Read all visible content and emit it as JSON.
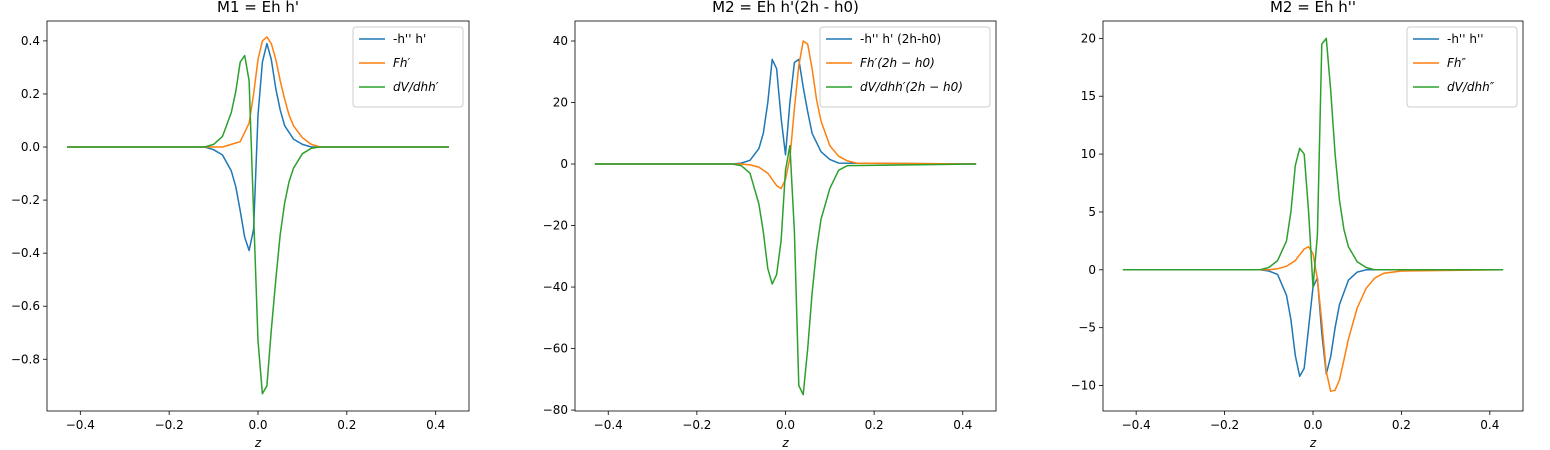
{
  "chart_data": [
    {
      "type": "line",
      "title": "M1 = Eh h'",
      "xlabel": "z",
      "ylabel": "",
      "xlim": [
        -0.475,
        0.475
      ],
      "ylim": [
        -0.995,
        0.475
      ],
      "xticks": [
        -0.4,
        -0.2,
        0.0,
        0.2,
        0.4
      ],
      "xtick_labels": [
        "−0.4",
        "−0.2",
        "0.0",
        "0.2",
        "0.4"
      ],
      "yticks": [
        -0.8,
        -0.6,
        -0.4,
        -0.2,
        0.0,
        0.2,
        0.4
      ],
      "ytick_labels": [
        "−0.8",
        "−0.6",
        "−0.4",
        "−0.2",
        "0.0",
        "0.2",
        "0.4"
      ],
      "legend_position": "top-right",
      "series": [
        {
          "name": "-h'' h'",
          "color": "#1f77b4",
          "x": [
            -0.43,
            -0.12,
            -0.1,
            -0.08,
            -0.06,
            -0.05,
            -0.04,
            -0.03,
            -0.02,
            -0.01,
            0.0,
            0.01,
            0.02,
            0.03,
            0.04,
            0.05,
            0.06,
            0.08,
            0.1,
            0.12,
            0.43
          ],
          "y": [
            0,
            0,
            -0.01,
            -0.03,
            -0.09,
            -0.15,
            -0.24,
            -0.34,
            -0.39,
            -0.31,
            0.12,
            0.32,
            0.39,
            0.33,
            0.22,
            0.14,
            0.08,
            0.03,
            0.01,
            0,
            0
          ]
        },
        {
          "name": "Fh′",
          "color": "#ff7f0e",
          "x": [
            -0.43,
            -0.1,
            -0.08,
            -0.06,
            -0.04,
            -0.02,
            -0.01,
            0.0,
            0.01,
            0.02,
            0.03,
            0.04,
            0.05,
            0.06,
            0.07,
            0.08,
            0.1,
            0.12,
            0.14,
            0.43
          ],
          "y": [
            0,
            0,
            0,
            0.01,
            0.02,
            0.09,
            0.2,
            0.33,
            0.4,
            0.415,
            0.39,
            0.33,
            0.25,
            0.18,
            0.12,
            0.08,
            0.035,
            0.01,
            0,
            0
          ]
        },
        {
          "name": "dV/dhh′",
          "color": "#2ca02c",
          "x": [
            -0.43,
            -0.12,
            -0.1,
            -0.08,
            -0.06,
            -0.05,
            -0.04,
            -0.03,
            -0.02,
            -0.01,
            0.0,
            0.01,
            0.02,
            0.03,
            0.04,
            0.05,
            0.06,
            0.07,
            0.08,
            0.1,
            0.12,
            0.14,
            0.43
          ],
          "y": [
            0,
            0,
            0.01,
            0.04,
            0.13,
            0.21,
            0.32,
            0.345,
            0.25,
            -0.25,
            -0.73,
            -0.93,
            -0.9,
            -0.69,
            -0.5,
            -0.33,
            -0.21,
            -0.13,
            -0.08,
            -0.025,
            -0.005,
            0,
            0
          ]
        }
      ]
    },
    {
      "type": "line",
      "title": "M2 = Eh h'(2h - h0)",
      "xlabel": "z",
      "ylabel": "",
      "xlim": [
        -0.475,
        0.475
      ],
      "ylim": [
        -80.3,
        46.5
      ],
      "xticks": [
        -0.4,
        -0.2,
        0.0,
        0.2,
        0.4
      ],
      "xtick_labels": [
        "−0.4",
        "−0.2",
        "0.0",
        "0.2",
        "0.4"
      ],
      "yticks": [
        -80,
        -60,
        -40,
        -20,
        0,
        20,
        40
      ],
      "ytick_labels": [
        "−80",
        "−60",
        "−40",
        "−20",
        "0",
        "20",
        "40"
      ],
      "legend_position": "top-right",
      "series": [
        {
          "name": "-h'' h' (2h-h0)",
          "color": "#1f77b4",
          "x": [
            -0.43,
            -0.12,
            -0.1,
            -0.08,
            -0.06,
            -0.05,
            -0.04,
            -0.03,
            -0.02,
            -0.01,
            0.0,
            0.01,
            0.02,
            0.03,
            0.04,
            0.05,
            0.06,
            0.08,
            0.1,
            0.12,
            0.43
          ],
          "y": [
            0,
            0,
            0.3,
            1.2,
            5,
            10,
            20,
            34,
            31,
            15,
            3,
            20,
            33,
            34,
            25,
            17,
            10,
            4,
            1.5,
            0.3,
            0
          ]
        },
        {
          "name": "Fh′(2h − h0)",
          "color": "#ff7f0e",
          "x": [
            -0.43,
            -0.1,
            -0.08,
            -0.06,
            -0.04,
            -0.02,
            -0.01,
            0.0,
            0.01,
            0.02,
            0.03,
            0.04,
            0.05,
            0.06,
            0.07,
            0.08,
            0.1,
            0.12,
            0.14,
            0.16,
            0.43
          ],
          "y": [
            0,
            0,
            -0.3,
            -1,
            -3,
            -7,
            -8,
            -5,
            2,
            18,
            32,
            40,
            39,
            31,
            21,
            14,
            6,
            2.5,
            1,
            0.3,
            0
          ]
        },
        {
          "name": "dV/dhh′(2h − h0)",
          "color": "#2ca02c",
          "x": [
            -0.43,
            -0.12,
            -0.1,
            -0.08,
            -0.06,
            -0.05,
            -0.04,
            -0.03,
            -0.02,
            -0.01,
            0.0,
            0.01,
            0.02,
            0.03,
            0.04,
            0.05,
            0.06,
            0.07,
            0.08,
            0.1,
            0.12,
            0.14,
            0.43
          ],
          "y": [
            0,
            0,
            -0.5,
            -3,
            -13,
            -22,
            -34,
            -39,
            -36,
            -25,
            -2,
            6,
            -22,
            -72,
            -75,
            -60,
            -42,
            -28,
            -18,
            -8,
            -2,
            -0.5,
            0
          ]
        }
      ]
    },
    {
      "type": "line",
      "title": "M2 = Eh h''",
      "xlabel": "z",
      "ylabel": "",
      "xlim": [
        -0.475,
        0.475
      ],
      "ylim": [
        -12.2,
        21.5
      ],
      "xticks": [
        -0.4,
        -0.2,
        0.0,
        0.2,
        0.4
      ],
      "xtick_labels": [
        "−0.4",
        "−0.2",
        "0.0",
        "0.2",
        "0.4"
      ],
      "yticks": [
        -10,
        -5,
        0,
        5,
        10,
        15,
        20
      ],
      "ytick_labels": [
        "−10",
        "−5",
        "0",
        "5",
        "10",
        "15",
        "20"
      ],
      "legend_position": "top-right",
      "series": [
        {
          "name": "-h'' h''",
          "color": "#1f77b4",
          "x": [
            -0.43,
            -0.12,
            -0.1,
            -0.08,
            -0.06,
            -0.05,
            -0.04,
            -0.03,
            -0.02,
            -0.01,
            0.0,
            0.01,
            0.02,
            0.03,
            0.04,
            0.05,
            0.06,
            0.08,
            0.1,
            0.12,
            0.43
          ],
          "y": [
            0,
            0,
            -0.1,
            -0.4,
            -2.2,
            -4.3,
            -7.4,
            -9.2,
            -8.5,
            -5,
            -1.5,
            -0.7,
            -5.5,
            -9,
            -7.5,
            -5,
            -3,
            -0.9,
            -0.2,
            0,
            0
          ]
        },
        {
          "name": "Fh″",
          "color": "#ff7f0e",
          "x": [
            -0.43,
            -0.1,
            -0.08,
            -0.06,
            -0.04,
            -0.03,
            -0.02,
            -0.01,
            0.0,
            0.01,
            0.02,
            0.03,
            0.04,
            0.05,
            0.06,
            0.07,
            0.08,
            0.1,
            0.12,
            0.14,
            0.16,
            0.2,
            0.43
          ],
          "y": [
            0,
            0,
            0.1,
            0.3,
            0.8,
            1.3,
            1.8,
            2.0,
            1.4,
            -0.8,
            -4.5,
            -8.8,
            -10.5,
            -10.4,
            -9.5,
            -7.8,
            -6,
            -3.3,
            -1.6,
            -0.7,
            -0.3,
            -0.1,
            0
          ]
        },
        {
          "name": "dV/dhh″",
          "color": "#2ca02c",
          "x": [
            -0.43,
            -0.12,
            -0.1,
            -0.08,
            -0.06,
            -0.05,
            -0.04,
            -0.03,
            -0.02,
            -0.01,
            0.0,
            0.01,
            0.02,
            0.03,
            0.04,
            0.05,
            0.06,
            0.07,
            0.08,
            0.1,
            0.12,
            0.14,
            0.43
          ],
          "y": [
            0,
            0,
            0.2,
            0.8,
            2.5,
            5,
            9,
            10.5,
            10,
            5,
            -1.5,
            3,
            19.5,
            20,
            15.5,
            10,
            6,
            3.5,
            2,
            0.7,
            0.2,
            0,
            0
          ]
        }
      ]
    }
  ]
}
